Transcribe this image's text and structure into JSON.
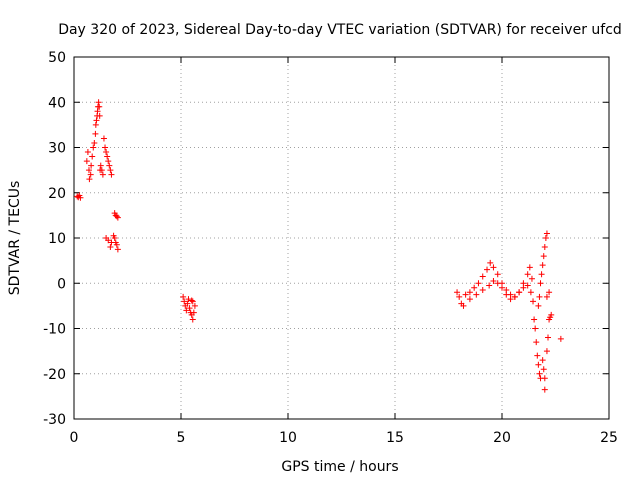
{
  "chart_data": {
    "type": "scatter",
    "title": "Day 320 of 2023, Sidereal Day-to-day VTEC variation (SDTVAR) for receiver ufcd",
    "xlabel": "GPS time / hours",
    "ylabel": "SDTVAR / TECUs",
    "xlim": [
      0,
      25
    ],
    "ylim": [
      -30,
      50
    ],
    "xticks": [
      0,
      5,
      10,
      15,
      20,
      25
    ],
    "yticks": [
      -30,
      -20,
      -10,
      0,
      10,
      20,
      30,
      40,
      50
    ],
    "grid": true,
    "marker": "+",
    "color": "#ff0000",
    "series": [
      {
        "name": "SDTVAR",
        "points": [
          [
            0.15,
            19.2
          ],
          [
            0.2,
            19.0
          ],
          [
            0.25,
            19.4
          ],
          [
            0.3,
            18.9
          ],
          [
            0.6,
            27
          ],
          [
            0.65,
            29
          ],
          [
            0.7,
            25
          ],
          [
            0.72,
            23
          ],
          [
            0.78,
            24
          ],
          [
            0.8,
            26
          ],
          [
            0.85,
            28
          ],
          [
            0.9,
            30
          ],
          [
            0.95,
            31
          ],
          [
            1.0,
            33
          ],
          [
            1.02,
            35
          ],
          [
            1.05,
            36
          ],
          [
            1.08,
            37
          ],
          [
            1.1,
            38
          ],
          [
            1.12,
            39
          ],
          [
            1.15,
            40
          ],
          [
            1.18,
            39
          ],
          [
            1.2,
            37
          ],
          [
            1.22,
            25
          ],
          [
            1.25,
            26
          ],
          [
            1.3,
            25
          ],
          [
            1.35,
            24
          ],
          [
            1.4,
            32
          ],
          [
            1.45,
            30
          ],
          [
            1.5,
            29
          ],
          [
            1.55,
            28
          ],
          [
            1.6,
            27
          ],
          [
            1.65,
            26
          ],
          [
            1.7,
            25
          ],
          [
            1.75,
            24
          ],
          [
            1.5,
            10
          ],
          [
            1.6,
            9.5
          ],
          [
            1.7,
            8
          ],
          [
            1.75,
            9
          ],
          [
            1.85,
            10.5
          ],
          [
            1.9,
            10
          ],
          [
            1.95,
            9
          ],
          [
            2.0,
            8.5
          ],
          [
            2.05,
            7.5
          ],
          [
            1.9,
            15.5
          ],
          [
            1.95,
            15
          ],
          [
            2.0,
            14.8
          ],
          [
            2.05,
            14.5
          ],
          [
            5.1,
            -3
          ],
          [
            5.15,
            -4
          ],
          [
            5.2,
            -5
          ],
          [
            5.25,
            -6
          ],
          [
            5.3,
            -4.5
          ],
          [
            5.35,
            -3.5
          ],
          [
            5.4,
            -5.5
          ],
          [
            5.45,
            -6.5
          ],
          [
            5.5,
            -7
          ],
          [
            5.55,
            -8
          ],
          [
            5.6,
            -6.5
          ],
          [
            5.65,
            -5
          ],
          [
            5.55,
            -4
          ],
          [
            5.5,
            -3.8
          ],
          [
            17.9,
            -2
          ],
          [
            18.0,
            -3
          ],
          [
            18.1,
            -4.5
          ],
          [
            18.2,
            -5
          ],
          [
            18.3,
            -2.5
          ],
          [
            18.5,
            -2
          ],
          [
            18.7,
            -1
          ],
          [
            18.9,
            0
          ],
          [
            19.1,
            1.5
          ],
          [
            19.3,
            3
          ],
          [
            19.45,
            4.5
          ],
          [
            19.6,
            3.5
          ],
          [
            19.8,
            2
          ],
          [
            20.0,
            0
          ],
          [
            20.2,
            -1.5
          ],
          [
            20.4,
            -2.5
          ],
          [
            20.6,
            -3
          ],
          [
            20.8,
            -2
          ],
          [
            21.0,
            0
          ],
          [
            21.2,
            2
          ],
          [
            21.3,
            3.5
          ],
          [
            21.4,
            1
          ],
          [
            18.5,
            -3.5
          ],
          [
            18.8,
            -2.5
          ],
          [
            19.1,
            -1.5
          ],
          [
            19.4,
            -0.5
          ],
          [
            19.6,
            0.5
          ],
          [
            19.8,
            0
          ],
          [
            20.0,
            -1
          ],
          [
            20.2,
            -2.5
          ],
          [
            20.4,
            -3.5
          ],
          [
            20.6,
            -3
          ],
          [
            20.8,
            -2
          ],
          [
            21.0,
            -1
          ],
          [
            21.2,
            -0.5
          ],
          [
            21.35,
            -2
          ],
          [
            21.45,
            -4
          ],
          [
            21.5,
            -8
          ],
          [
            21.55,
            -10
          ],
          [
            21.6,
            -13
          ],
          [
            21.65,
            -16
          ],
          [
            21.7,
            -18
          ],
          [
            21.75,
            -20
          ],
          [
            21.8,
            -21
          ],
          [
            21.7,
            -5
          ],
          [
            21.75,
            -3
          ],
          [
            21.8,
            0
          ],
          [
            21.85,
            2
          ],
          [
            21.9,
            4
          ],
          [
            21.95,
            6
          ],
          [
            22.0,
            8
          ],
          [
            22.05,
            10
          ],
          [
            22.1,
            11
          ],
          [
            21.9,
            -17
          ],
          [
            21.95,
            -19
          ],
          [
            22.0,
            -21
          ],
          [
            22.0,
            -23.5
          ],
          [
            22.1,
            -15
          ],
          [
            22.15,
            -12
          ],
          [
            22.2,
            -8
          ],
          [
            22.25,
            -7.5
          ],
          [
            22.3,
            -7
          ],
          [
            22.1,
            -3
          ],
          [
            22.2,
            -2
          ],
          [
            22.75,
            -12.3
          ]
        ]
      }
    ]
  }
}
